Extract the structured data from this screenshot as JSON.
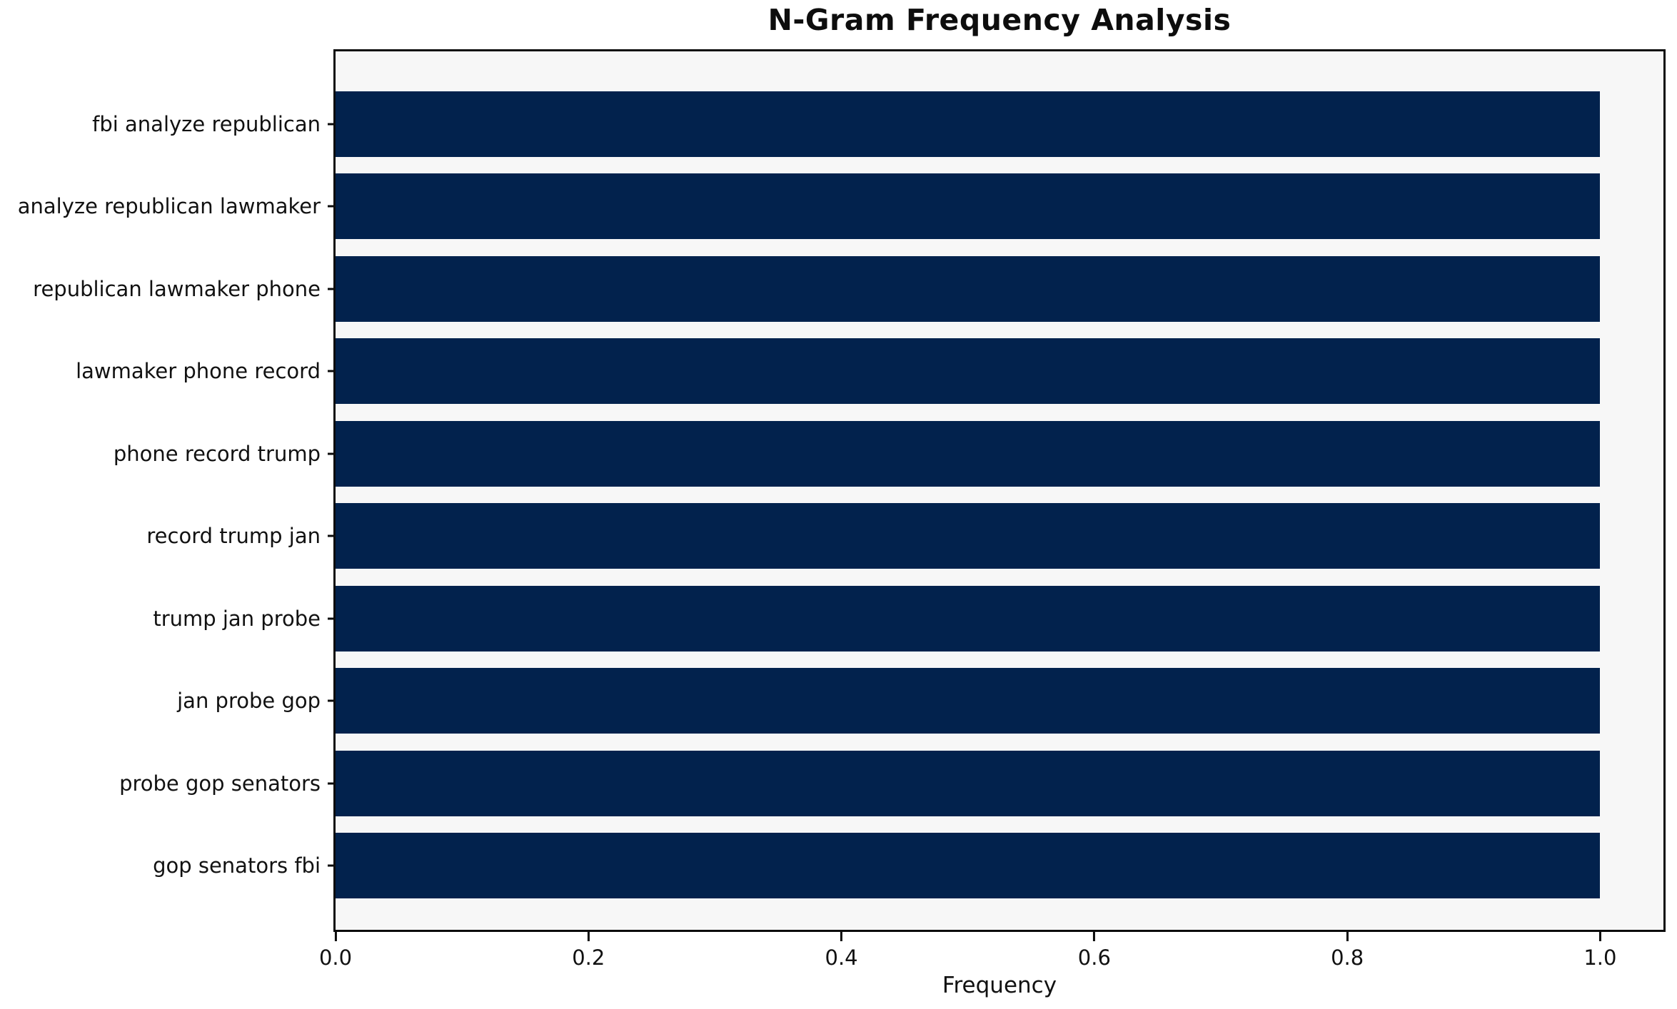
{
  "chart_data": {
    "type": "bar",
    "orientation": "horizontal",
    "title": "N-Gram Frequency Analysis",
    "xlabel": "Frequency",
    "ylabel": "",
    "categories": [
      "fbi analyze republican",
      "analyze republican lawmaker",
      "republican lawmaker phone",
      "lawmaker phone record",
      "phone record trump",
      "record trump jan",
      "trump jan probe",
      "jan probe gop",
      "probe gop senators",
      "gop senators fbi"
    ],
    "values": [
      1.0,
      1.0,
      1.0,
      1.0,
      1.0,
      1.0,
      1.0,
      1.0,
      1.0,
      1.0
    ],
    "xlim": [
      0,
      1.05
    ],
    "x_ticks": [
      0.0,
      0.2,
      0.4,
      0.6,
      0.8,
      1.0
    ],
    "x_tick_labels": [
      "0.0",
      "0.2",
      "0.4",
      "0.6",
      "0.8",
      "1.0"
    ],
    "grid": false,
    "legend": "none",
    "bar_color": "#02224d",
    "plot_bg": "#f7f7f7",
    "spine_color": "#0c0c0c"
  }
}
